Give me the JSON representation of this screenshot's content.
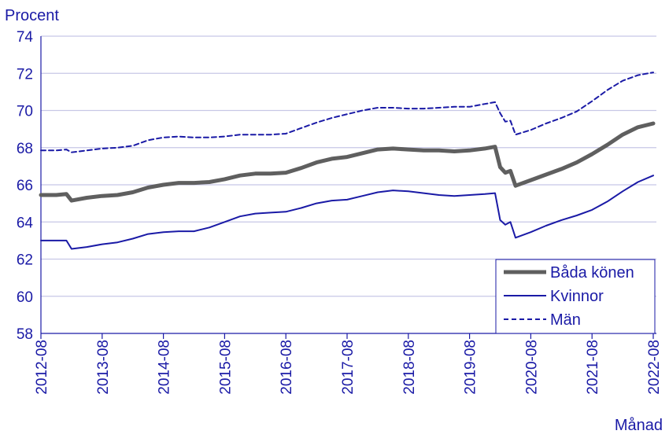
{
  "chart_data": {
    "type": "line",
    "title": "",
    "ylabel": "Procent",
    "xlabel": "Månad",
    "ylim": [
      58,
      74
    ],
    "yticks": [
      58,
      60,
      62,
      64,
      66,
      68,
      70,
      72,
      74
    ],
    "xticks": [
      "2012-08",
      "2013-08",
      "2014-08",
      "2015-08",
      "2016-08",
      "2017-08",
      "2018-08",
      "2019-08",
      "2020-08",
      "2021-08",
      "2022-08"
    ],
    "grid": "horizontal",
    "legend_position": "bottom-right",
    "x_start": "2012-08",
    "x_end": "2022-08",
    "colors": {
      "axis_text": "#1a1aa6",
      "grid": "#c7c7e6",
      "baseline": "#1a1aa6"
    },
    "series": [
      {
        "name": "Båda könen",
        "color": "#5f5f5f",
        "style": "solid-thick",
        "points": [
          [
            "2012-08",
            65.45
          ],
          [
            "2012-11",
            65.45
          ],
          [
            "2013-01",
            65.5
          ],
          [
            "2013-02",
            65.15
          ],
          [
            "2013-05",
            65.3
          ],
          [
            "2013-08",
            65.4
          ],
          [
            "2013-11",
            65.45
          ],
          [
            "2014-02",
            65.6
          ],
          [
            "2014-05",
            65.85
          ],
          [
            "2014-08",
            66.0
          ],
          [
            "2014-11",
            66.1
          ],
          [
            "2015-02",
            66.1
          ],
          [
            "2015-05",
            66.15
          ],
          [
            "2015-08",
            66.3
          ],
          [
            "2015-11",
            66.5
          ],
          [
            "2016-02",
            66.6
          ],
          [
            "2016-05",
            66.6
          ],
          [
            "2016-08",
            66.65
          ],
          [
            "2016-11",
            66.9
          ],
          [
            "2017-02",
            67.2
          ],
          [
            "2017-05",
            67.4
          ],
          [
            "2017-08",
            67.5
          ],
          [
            "2017-11",
            67.7
          ],
          [
            "2018-02",
            67.9
          ],
          [
            "2018-05",
            67.95
          ],
          [
            "2018-08",
            67.9
          ],
          [
            "2018-11",
            67.85
          ],
          [
            "2019-02",
            67.85
          ],
          [
            "2019-05",
            67.8
          ],
          [
            "2019-08",
            67.85
          ],
          [
            "2019-11",
            67.95
          ],
          [
            "2020-01",
            68.05
          ],
          [
            "2020-02",
            66.95
          ],
          [
            "2020-03",
            66.65
          ],
          [
            "2020-04",
            66.75
          ],
          [
            "2020-05",
            65.95
          ],
          [
            "2020-08",
            66.25
          ],
          [
            "2020-11",
            66.55
          ],
          [
            "2021-02",
            66.85
          ],
          [
            "2021-05",
            67.2
          ],
          [
            "2021-08",
            67.65
          ],
          [
            "2021-11",
            68.15
          ],
          [
            "2022-02",
            68.7
          ],
          [
            "2022-05",
            69.1
          ],
          [
            "2022-08",
            69.3
          ]
        ]
      },
      {
        "name": "Kvinnor",
        "color": "#1a1aa6",
        "style": "solid",
        "points": [
          [
            "2012-08",
            63.0
          ],
          [
            "2012-11",
            63.0
          ],
          [
            "2013-01",
            63.0
          ],
          [
            "2013-02",
            62.55
          ],
          [
            "2013-05",
            62.65
          ],
          [
            "2013-08",
            62.8
          ],
          [
            "2013-11",
            62.9
          ],
          [
            "2014-02",
            63.1
          ],
          [
            "2014-05",
            63.35
          ],
          [
            "2014-08",
            63.45
          ],
          [
            "2014-11",
            63.5
          ],
          [
            "2015-02",
            63.5
          ],
          [
            "2015-05",
            63.7
          ],
          [
            "2015-08",
            64.0
          ],
          [
            "2015-11",
            64.3
          ],
          [
            "2016-02",
            64.45
          ],
          [
            "2016-05",
            64.5
          ],
          [
            "2016-08",
            64.55
          ],
          [
            "2016-11",
            64.75
          ],
          [
            "2017-02",
            65.0
          ],
          [
            "2017-05",
            65.15
          ],
          [
            "2017-08",
            65.2
          ],
          [
            "2017-11",
            65.4
          ],
          [
            "2018-02",
            65.6
          ],
          [
            "2018-05",
            65.7
          ],
          [
            "2018-08",
            65.65
          ],
          [
            "2018-11",
            65.55
          ],
          [
            "2019-02",
            65.45
          ],
          [
            "2019-05",
            65.4
          ],
          [
            "2019-08",
            65.45
          ],
          [
            "2019-11",
            65.5
          ],
          [
            "2020-01",
            65.55
          ],
          [
            "2020-02",
            64.1
          ],
          [
            "2020-03",
            63.85
          ],
          [
            "2020-04",
            64.0
          ],
          [
            "2020-05",
            63.15
          ],
          [
            "2020-08",
            63.45
          ],
          [
            "2020-11",
            63.8
          ],
          [
            "2021-02",
            64.1
          ],
          [
            "2021-05",
            64.35
          ],
          [
            "2021-08",
            64.65
          ],
          [
            "2021-11",
            65.1
          ],
          [
            "2022-02",
            65.65
          ],
          [
            "2022-05",
            66.15
          ],
          [
            "2022-08",
            66.5
          ]
        ]
      },
      {
        "name": "Män",
        "color": "#1a1aa6",
        "style": "dashed",
        "points": [
          [
            "2012-08",
            67.85
          ],
          [
            "2012-11",
            67.85
          ],
          [
            "2013-01",
            67.9
          ],
          [
            "2013-02",
            67.75
          ],
          [
            "2013-05",
            67.85
          ],
          [
            "2013-08",
            67.95
          ],
          [
            "2013-11",
            68.0
          ],
          [
            "2014-02",
            68.1
          ],
          [
            "2014-05",
            68.4
          ],
          [
            "2014-08",
            68.55
          ],
          [
            "2014-11",
            68.6
          ],
          [
            "2015-02",
            68.55
          ],
          [
            "2015-05",
            68.55
          ],
          [
            "2015-08",
            68.6
          ],
          [
            "2015-11",
            68.7
          ],
          [
            "2016-02",
            68.7
          ],
          [
            "2016-05",
            68.7
          ],
          [
            "2016-08",
            68.75
          ],
          [
            "2016-11",
            69.05
          ],
          [
            "2017-02",
            69.35
          ],
          [
            "2017-05",
            69.6
          ],
          [
            "2017-08",
            69.8
          ],
          [
            "2017-11",
            70.0
          ],
          [
            "2018-02",
            70.15
          ],
          [
            "2018-05",
            70.15
          ],
          [
            "2018-08",
            70.1
          ],
          [
            "2018-11",
            70.1
          ],
          [
            "2019-02",
            70.15
          ],
          [
            "2019-05",
            70.2
          ],
          [
            "2019-08",
            70.2
          ],
          [
            "2019-11",
            70.35
          ],
          [
            "2020-01",
            70.45
          ],
          [
            "2020-02",
            69.85
          ],
          [
            "2020-03",
            69.4
          ],
          [
            "2020-04",
            69.45
          ],
          [
            "2020-05",
            68.7
          ],
          [
            "2020-08",
            68.95
          ],
          [
            "2020-11",
            69.3
          ],
          [
            "2021-02",
            69.6
          ],
          [
            "2021-05",
            69.95
          ],
          [
            "2021-08",
            70.5
          ],
          [
            "2021-11",
            71.1
          ],
          [
            "2022-02",
            71.6
          ],
          [
            "2022-05",
            71.9
          ],
          [
            "2022-08",
            72.05
          ]
        ]
      }
    ]
  }
}
